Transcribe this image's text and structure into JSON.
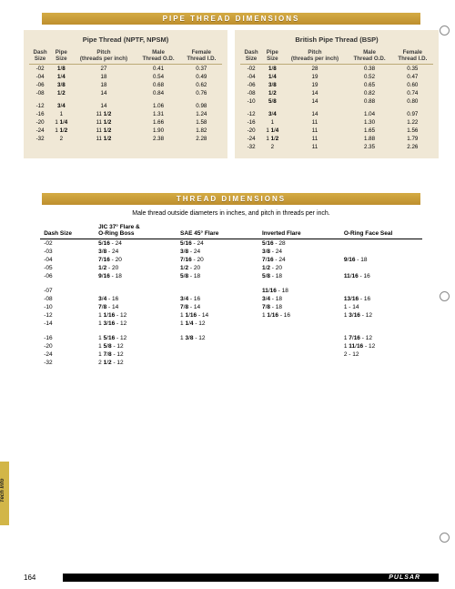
{
  "banner1": "PIPE THREAD DIMENSIONS",
  "banner2": "THREAD DIMENSIONS",
  "pipe_nptf": {
    "title": "Pipe Thread (NPTF, NPSM)",
    "headers": [
      "Dash Size",
      "Pipe Size",
      "Pitch (threads per inch)",
      "Male Thread O.D.",
      "Female Thread I.D."
    ],
    "rowsA": [
      [
        "-02",
        "1/8",
        "27",
        "0.41",
        "0.37"
      ],
      [
        "-04",
        "1/4",
        "18",
        "0.54",
        "0.49"
      ],
      [
        "-06",
        "3/8",
        "18",
        "0.68",
        "0.62"
      ],
      [
        "-08",
        "1/2",
        "14",
        "0.84",
        "0.76"
      ]
    ],
    "rowsB": [
      [
        "-12",
        "3/4",
        "14",
        "1.06",
        "0.98"
      ],
      [
        "-16",
        "1",
        "11 1/2",
        "1.31",
        "1.24"
      ],
      [
        "-20",
        "1 1/4",
        "11 1/2",
        "1.66",
        "1.58"
      ],
      [
        "-24",
        "1 1/2",
        "11 1/2",
        "1.90",
        "1.82"
      ],
      [
        "-32",
        "2",
        "11 1/2",
        "2.38",
        "2.28"
      ]
    ]
  },
  "pipe_bsp": {
    "title": "British Pipe Thread (BSP)",
    "headers": [
      "Dash Size",
      "Pipe Size",
      "Pitch (threads per inch)",
      "Male Thread O.D.",
      "Female Thread I.D."
    ],
    "rowsA": [
      [
        "-02",
        "1/8",
        "28",
        "0.38",
        "0.35"
      ],
      [
        "-04",
        "1/4",
        "19",
        "0.52",
        "0.47"
      ],
      [
        "-06",
        "3/8",
        "19",
        "0.65",
        "0.60"
      ],
      [
        "-08",
        "1/2",
        "14",
        "0.82",
        "0.74"
      ],
      [
        "-10",
        "5/8",
        "14",
        "0.88",
        "0.80"
      ]
    ],
    "rowsB": [
      [
        "-12",
        "3/4",
        "14",
        "1.04",
        "0.97"
      ],
      [
        "-16",
        "1",
        "11",
        "1.30",
        "1.22"
      ],
      [
        "-20",
        "1 1/4",
        "11",
        "1.65",
        "1.56"
      ],
      [
        "-24",
        "1 1/2",
        "11",
        "1.88",
        "1.79"
      ],
      [
        "-32",
        "2",
        "11",
        "2.35",
        "2.26"
      ]
    ]
  },
  "thread_subtitle": "Male thread outside diameters in inches, and pitch in threads per inch.",
  "thread_headers": [
    "Dash Size",
    "JIC 37° Flare & O-Ring Boss",
    "SAE 45° Flare",
    "Inverted Flare",
    "O-Ring Face Seal"
  ],
  "thread_rows": [
    [
      "-02",
      "5/16 - 24",
      "5/16 - 24",
      "5/16 - 28",
      ""
    ],
    [
      "-03",
      "3/8 - 24",
      "3/8 - 24",
      "3/8 - 24",
      ""
    ],
    [
      "-04",
      "7/16 - 20",
      "7/16 - 20",
      "7/16 - 24",
      "9/16 - 18"
    ],
    [
      "-05",
      "1/2 - 20",
      "1/2 - 20",
      "1/2 - 20",
      ""
    ],
    [
      "-06",
      "9/16 - 18",
      "5/8 - 18",
      "5/8 - 18",
      "11/16 - 16"
    ],
    [
      "",
      "",
      "",
      "",
      ""
    ],
    [
      "-07",
      "",
      "",
      "11/16 - 18",
      ""
    ],
    [
      "-08",
      "3/4 - 16",
      "3/4 - 16",
      "3/4 - 18",
      "13/16 - 16"
    ],
    [
      "-10",
      "7/8 - 14",
      "7/8 - 14",
      "7/8 - 18",
      "1 - 14"
    ],
    [
      "-12",
      "1 1/16 - 12",
      "1 1/16 - 14",
      "1 1/16 - 16",
      "1 3/16 - 12"
    ],
    [
      "-14",
      "1 3/16 - 12",
      "1 1/4 - 12",
      "",
      ""
    ],
    [
      "",
      "",
      "",
      "",
      ""
    ],
    [
      "-16",
      "1 5/16 - 12",
      "1 3/8 - 12",
      "",
      "1 7/16 - 12"
    ],
    [
      "-20",
      "1 5/8 - 12",
      "",
      "",
      "1 11/16 - 12"
    ],
    [
      "-24",
      "1 7/8 - 12",
      "",
      "",
      "2 - 12"
    ],
    [
      "-32",
      "2 1/2 - 12",
      "",
      "",
      ""
    ]
  ],
  "tab": "Tech Info",
  "page": "164",
  "brand": "PULSAR",
  "colors": {
    "banner": "#c9a03a",
    "block_bg": "#f0e8d6",
    "tab": "#d2b648"
  }
}
